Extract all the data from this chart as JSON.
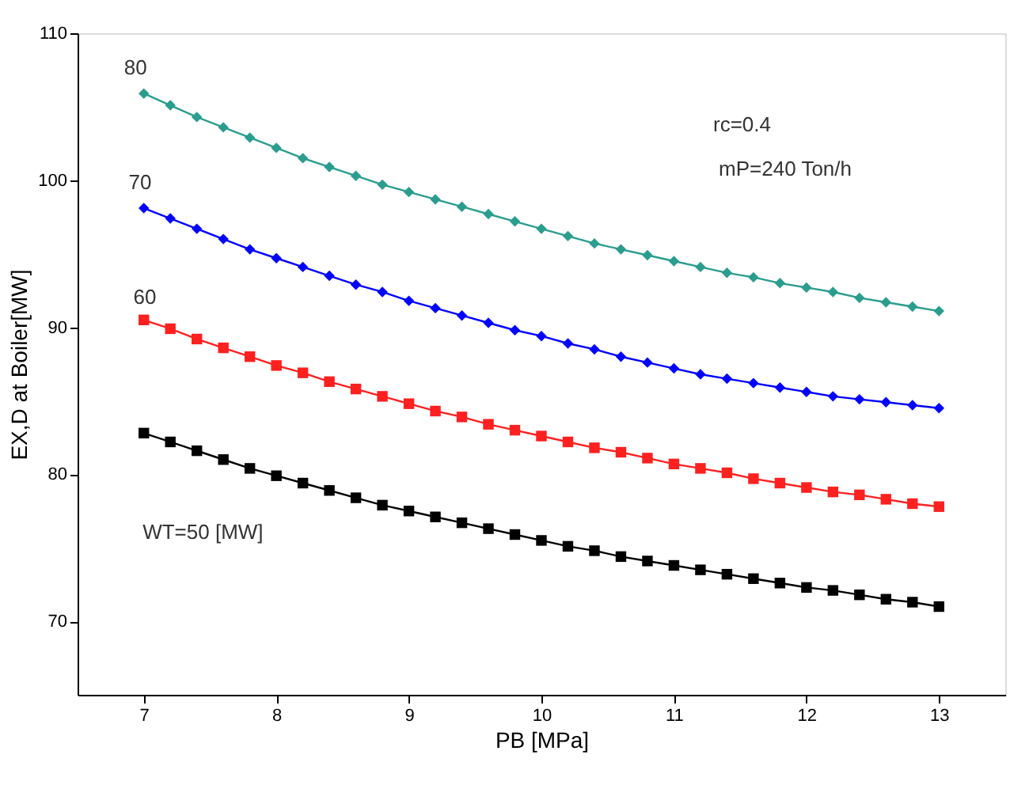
{
  "chart_data": {
    "type": "line",
    "xlabel": "PB [MPa]",
    "ylabel": "EX,D at Boiler[MW]",
    "x": [
      7,
      7.2,
      7.4,
      7.6,
      7.8,
      8,
      8.2,
      8.4,
      8.6,
      8.8,
      9,
      9.2,
      9.4,
      9.6,
      9.8,
      10,
      10.2,
      10.4,
      10.6,
      10.8,
      11,
      11.2,
      11.4,
      11.6,
      11.8,
      12,
      12.2,
      12.4,
      12.6,
      12.8,
      13
    ],
    "series": [
      {
        "color": "#000000",
        "marker": "square",
        "values": [
          82.8,
          82.2,
          81.6,
          81.0,
          80.4,
          79.9,
          79.4,
          78.9,
          78.4,
          77.9,
          77.5,
          77.1,
          76.7,
          76.3,
          75.9,
          75.5,
          75.1,
          74.8,
          74.4,
          74.1,
          73.8,
          73.5,
          73.2,
          72.9,
          72.6,
          72.3,
          72.1,
          71.8,
          71.5,
          71.3,
          71.0
        ]
      },
      {
        "color": "#ff2020",
        "marker": "square",
        "values": [
          90.5,
          89.9,
          89.2,
          88.6,
          88.0,
          87.4,
          86.9,
          86.3,
          85.8,
          85.3,
          84.8,
          84.3,
          83.9,
          83.4,
          83.0,
          82.6,
          82.2,
          81.8,
          81.5,
          81.1,
          80.7,
          80.4,
          80.1,
          79.7,
          79.4,
          79.1,
          78.8,
          78.6,
          78.3,
          78.0,
          77.8
        ]
      },
      {
        "color": "#0000ff",
        "marker": "diamond",
        "values": [
          98.1,
          97.4,
          96.7,
          96.0,
          95.3,
          94.7,
          94.1,
          93.5,
          92.9,
          92.4,
          91.8,
          91.3,
          90.8,
          90.3,
          89.8,
          89.4,
          88.9,
          88.5,
          88.0,
          87.6,
          87.2,
          86.8,
          86.5,
          86.2,
          85.9,
          85.6,
          85.3,
          85.1,
          84.9,
          84.7,
          84.5
        ]
      },
      {
        "color": "#2a9d8f",
        "marker": "diamond",
        "values": [
          105.9,
          105.1,
          104.3,
          103.6,
          102.9,
          102.2,
          101.5,
          100.9,
          100.3,
          99.7,
          99.2,
          98.7,
          98.2,
          97.7,
          97.2,
          96.7,
          96.2,
          95.7,
          95.3,
          94.9,
          94.5,
          94.1,
          93.7,
          93.4,
          93.0,
          92.7,
          92.4,
          92.0,
          91.7,
          91.4,
          91.1
        ]
      }
    ],
    "annotations": [
      "80",
      "70",
      "60",
      "WT=50 [MW]",
      "rc=0.4",
      "mP=240 Ton/h"
    ],
    "xlim": [
      6.5,
      13.5
    ],
    "xticks": [
      7,
      8,
      9,
      10,
      11,
      12,
      13
    ],
    "ylim": [
      65,
      110
    ],
    "yticks": [
      70,
      80,
      90,
      100,
      110
    ],
    "grid": false,
    "line_style": "solid"
  }
}
